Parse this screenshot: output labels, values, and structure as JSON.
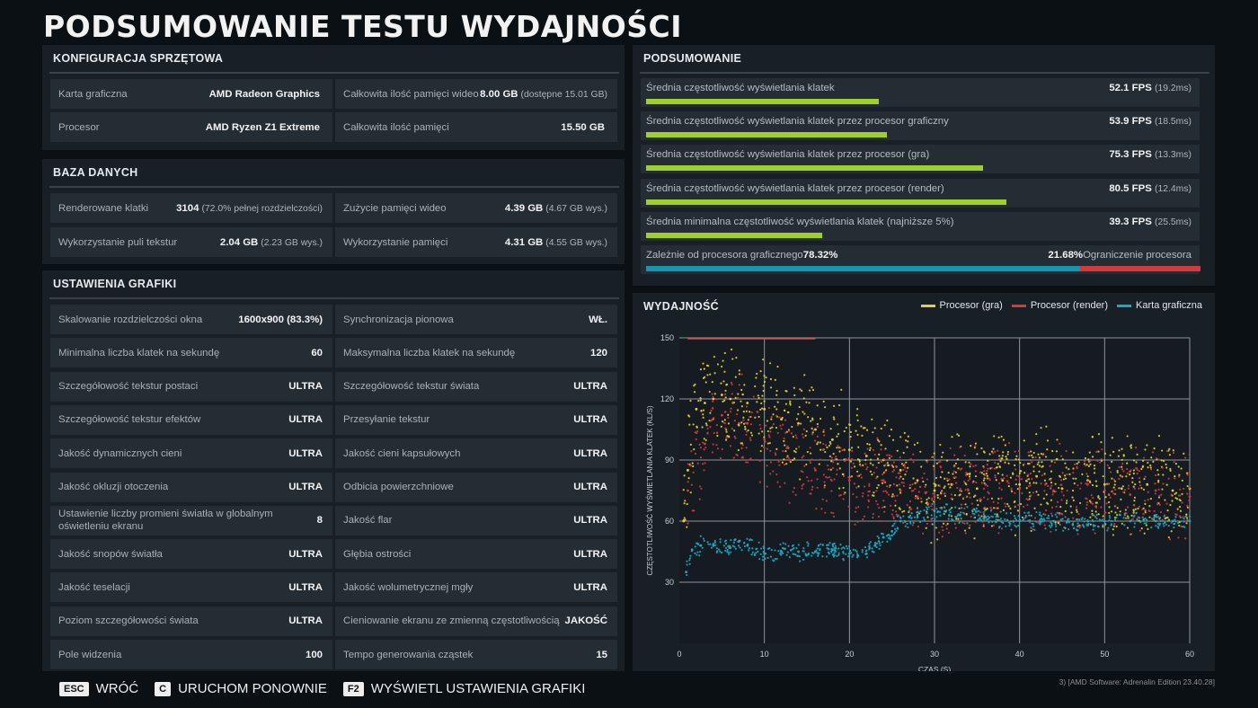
{
  "title": "PODSUMOWANIE TESTU WYDAJNOŚCI",
  "hardware": {
    "heading": "KONFIGURACJA SPRZĘTOWA",
    "rows": [
      [
        {
          "label": "Karta graficzna",
          "value": "AMD Radeon Graphics",
          "sub": ""
        },
        {
          "label": "Całkowita ilość pamięci wideo",
          "value": "8.00 GB",
          "sub": "(dostępne 15.01 GB)"
        }
      ],
      [
        {
          "label": "Procesor",
          "value": "AMD Ryzen Z1 Extreme",
          "sub": ""
        },
        {
          "label": "Całkowita ilość pamięci",
          "value": "15.50 GB",
          "sub": ""
        }
      ]
    ]
  },
  "database": {
    "heading": "BAZA DANYCH",
    "rows": [
      [
        {
          "label": "Renderowane klatki",
          "value": "3104",
          "sub": "(72.0% pełnej rozdzielczości)"
        },
        {
          "label": "Zużycie pamięci wideo",
          "value": "4.39 GB",
          "sub": "(4.67 GB wys.)"
        }
      ],
      [
        {
          "label": "Wykorzystanie puli tekstur",
          "value": "2.04 GB",
          "sub": "(2.23 GB wys.)"
        },
        {
          "label": "Wykorzystanie pamięci",
          "value": "4.31 GB",
          "sub": "(4.55 GB wys.)"
        }
      ]
    ]
  },
  "graphics": {
    "heading": "USTAWIENIA GRAFIKI",
    "rows": [
      [
        {
          "label": "Skalowanie rozdzielczości okna",
          "value": "1600x900 (83.3%)"
        },
        {
          "label": "Synchronizacja pionowa",
          "value": "WŁ."
        }
      ],
      [
        {
          "label": "Minimalna liczba klatek na sekundę",
          "value": "60"
        },
        {
          "label": "Maksymalna liczba klatek na sekundę",
          "value": "120"
        }
      ],
      [
        {
          "label": "Szczegółowość tekstur postaci",
          "value": "ULTRA"
        },
        {
          "label": "Szczegółowość tekstur świata",
          "value": "ULTRA"
        }
      ],
      [
        {
          "label": "Szczegółowość tekstur efektów",
          "value": "ULTRA"
        },
        {
          "label": "Przesyłanie tekstur",
          "value": "ULTRA"
        }
      ],
      [
        {
          "label": "Jakość dynamicznych cieni",
          "value": "ULTRA"
        },
        {
          "label": "Jakość cieni kapsułowych",
          "value": "ULTRA"
        }
      ],
      [
        {
          "label": "Jakość okluzji otoczenia",
          "value": "ULTRA"
        },
        {
          "label": "Odbicia powierzchniowe",
          "value": "ULTRA"
        }
      ],
      [
        {
          "label": "Ustawienie liczby promieni światła w globalnym oświetleniu ekranu",
          "value": "8"
        },
        {
          "label": "Jakość flar",
          "value": "ULTRA"
        }
      ],
      [
        {
          "label": "Jakość snopów światła",
          "value": "ULTRA"
        },
        {
          "label": "Głębia ostrości",
          "value": "ULTRA"
        }
      ],
      [
        {
          "label": "Jakość teselacji",
          "value": "ULTRA"
        },
        {
          "label": "Jakość wolumetrycznej mgły",
          "value": "ULTRA"
        }
      ],
      [
        {
          "label": "Poziom szczegółowości świata",
          "value": "ULTRA"
        },
        {
          "label": "Cieniowanie ekranu ze zmienną częstotliwością",
          "value": "JAKOŚĆ"
        }
      ],
      [
        {
          "label": "Pole widzenia",
          "value": "100"
        },
        {
          "label": "Tempo generowania cząstek",
          "value": "15"
        }
      ]
    ]
  },
  "summary": {
    "heading": "PODSUMOWANIE",
    "items": [
      {
        "label": "Średnia częstotliwość wyświetlania klatek",
        "value": "52.1 FPS",
        "sub": "(19.2ms)",
        "fps": 52.1
      },
      {
        "label": "Średnia częstotliwość wyświetlania klatek przez procesor graficzny",
        "value": "53.9 FPS",
        "sub": "(18.5ms)",
        "fps": 53.9
      },
      {
        "label": "Średnia częstotliwość wyświetlania klatek przez procesor (gra)",
        "value": "75.3 FPS",
        "sub": "(13.3ms)",
        "fps": 75.3
      },
      {
        "label": "Średnia częstotliwość wyświetlania klatek przez procesor (render)",
        "value": "80.5 FPS",
        "sub": "(12.4ms)",
        "fps": 80.5
      },
      {
        "label": "Średnia minimalna częstotliwość wyświetlania klatek (najniższe 5%)",
        "value": "39.3 FPS",
        "sub": "(25.5ms)",
        "fps": 39.3
      }
    ],
    "bar_scale_max_fps": 125,
    "gpu_bound_label": "Zależnie od procesora graficznego",
    "gpu_bound_value": "78.32%",
    "cpu_bound_value": "21.68%",
    "cpu_bound_label": "Ograniczenie procesora",
    "gpu_fraction": 0.7832,
    "colors": {
      "bar": "#9ecf2a",
      "gpu": "#1596b4",
      "cpu": "#d43a3c"
    }
  },
  "chart_data": {
    "type": "scatter",
    "title": "WYDAJNOŚĆ",
    "xlabel": "CZAS (S)",
    "ylabel": "CZĘSTOTLIWOŚĆ WYŚWIETLANIA KLATEK (KL/S)",
    "xlim": [
      0,
      60
    ],
    "ylim": [
      0,
      150
    ],
    "xticks": [
      0,
      10,
      20,
      30,
      40,
      50,
      60
    ],
    "yticks": [
      30,
      60,
      90,
      120,
      150
    ],
    "grid": true,
    "legend_position": "top-right",
    "series": [
      {
        "name": "Procesor (gra)",
        "color": "#e8cf3a",
        "x": [
          0.5,
          1,
          2,
          3,
          4,
          5,
          6,
          8,
          10,
          12,
          14,
          16,
          18,
          20,
          22,
          24,
          26,
          28,
          30,
          32,
          35,
          38,
          40,
          42,
          45,
          48,
          50,
          52,
          55,
          58,
          60
        ],
        "y": [
          60,
          85,
          115,
          118,
          120,
          122,
          120,
          118,
          115,
          110,
          108,
          105,
          100,
          95,
          92,
          90,
          85,
          80,
          75,
          78,
          76,
          80,
          78,
          82,
          76,
          80,
          78,
          76,
          78,
          75,
          76
        ]
      },
      {
        "name": "Procesor (render)",
        "color": "#d43a3c",
        "x": [
          1,
          3,
          5,
          8,
          10,
          13,
          16,
          20,
          24,
          26,
          28,
          30,
          33,
          36,
          40,
          44,
          48,
          50,
          53,
          56,
          60
        ],
        "y": [
          75,
          98,
          112,
          108,
          100,
          90,
          85,
          80,
          80,
          75,
          72,
          72,
          75,
          78,
          76,
          75,
          78,
          75,
          73,
          75,
          72
        ]
      },
      {
        "name": "Karta graficzna",
        "color": "#1ba8c4",
        "x": [
          0.8,
          1.5,
          2.5,
          4,
          6,
          7,
          8,
          10,
          12,
          14,
          16,
          18,
          20,
          21,
          22,
          23,
          24,
          25,
          26,
          27,
          28,
          30,
          33,
          36,
          40,
          44,
          48,
          50,
          53,
          56,
          58,
          60
        ],
        "y": [
          35,
          46,
          48,
          48,
          47,
          50,
          48,
          44,
          45,
          45,
          45,
          46,
          44,
          43,
          44,
          48,
          52,
          55,
          60,
          62,
          62,
          65,
          63,
          62,
          60,
          60,
          58,
          60,
          60,
          60,
          60,
          60
        ]
      }
    ]
  },
  "footer": {
    "back_key": "ESC",
    "back_label": "WRÓĆ",
    "restart_key": "C",
    "restart_label": "URUCHOM PONOWNIE",
    "settings_key": "F2",
    "settings_label": "WYŚWIETL USTAWIENIA GRAFIKI"
  },
  "version": "3) [AMD Software: Adrenalin Edition 23.40.28]"
}
